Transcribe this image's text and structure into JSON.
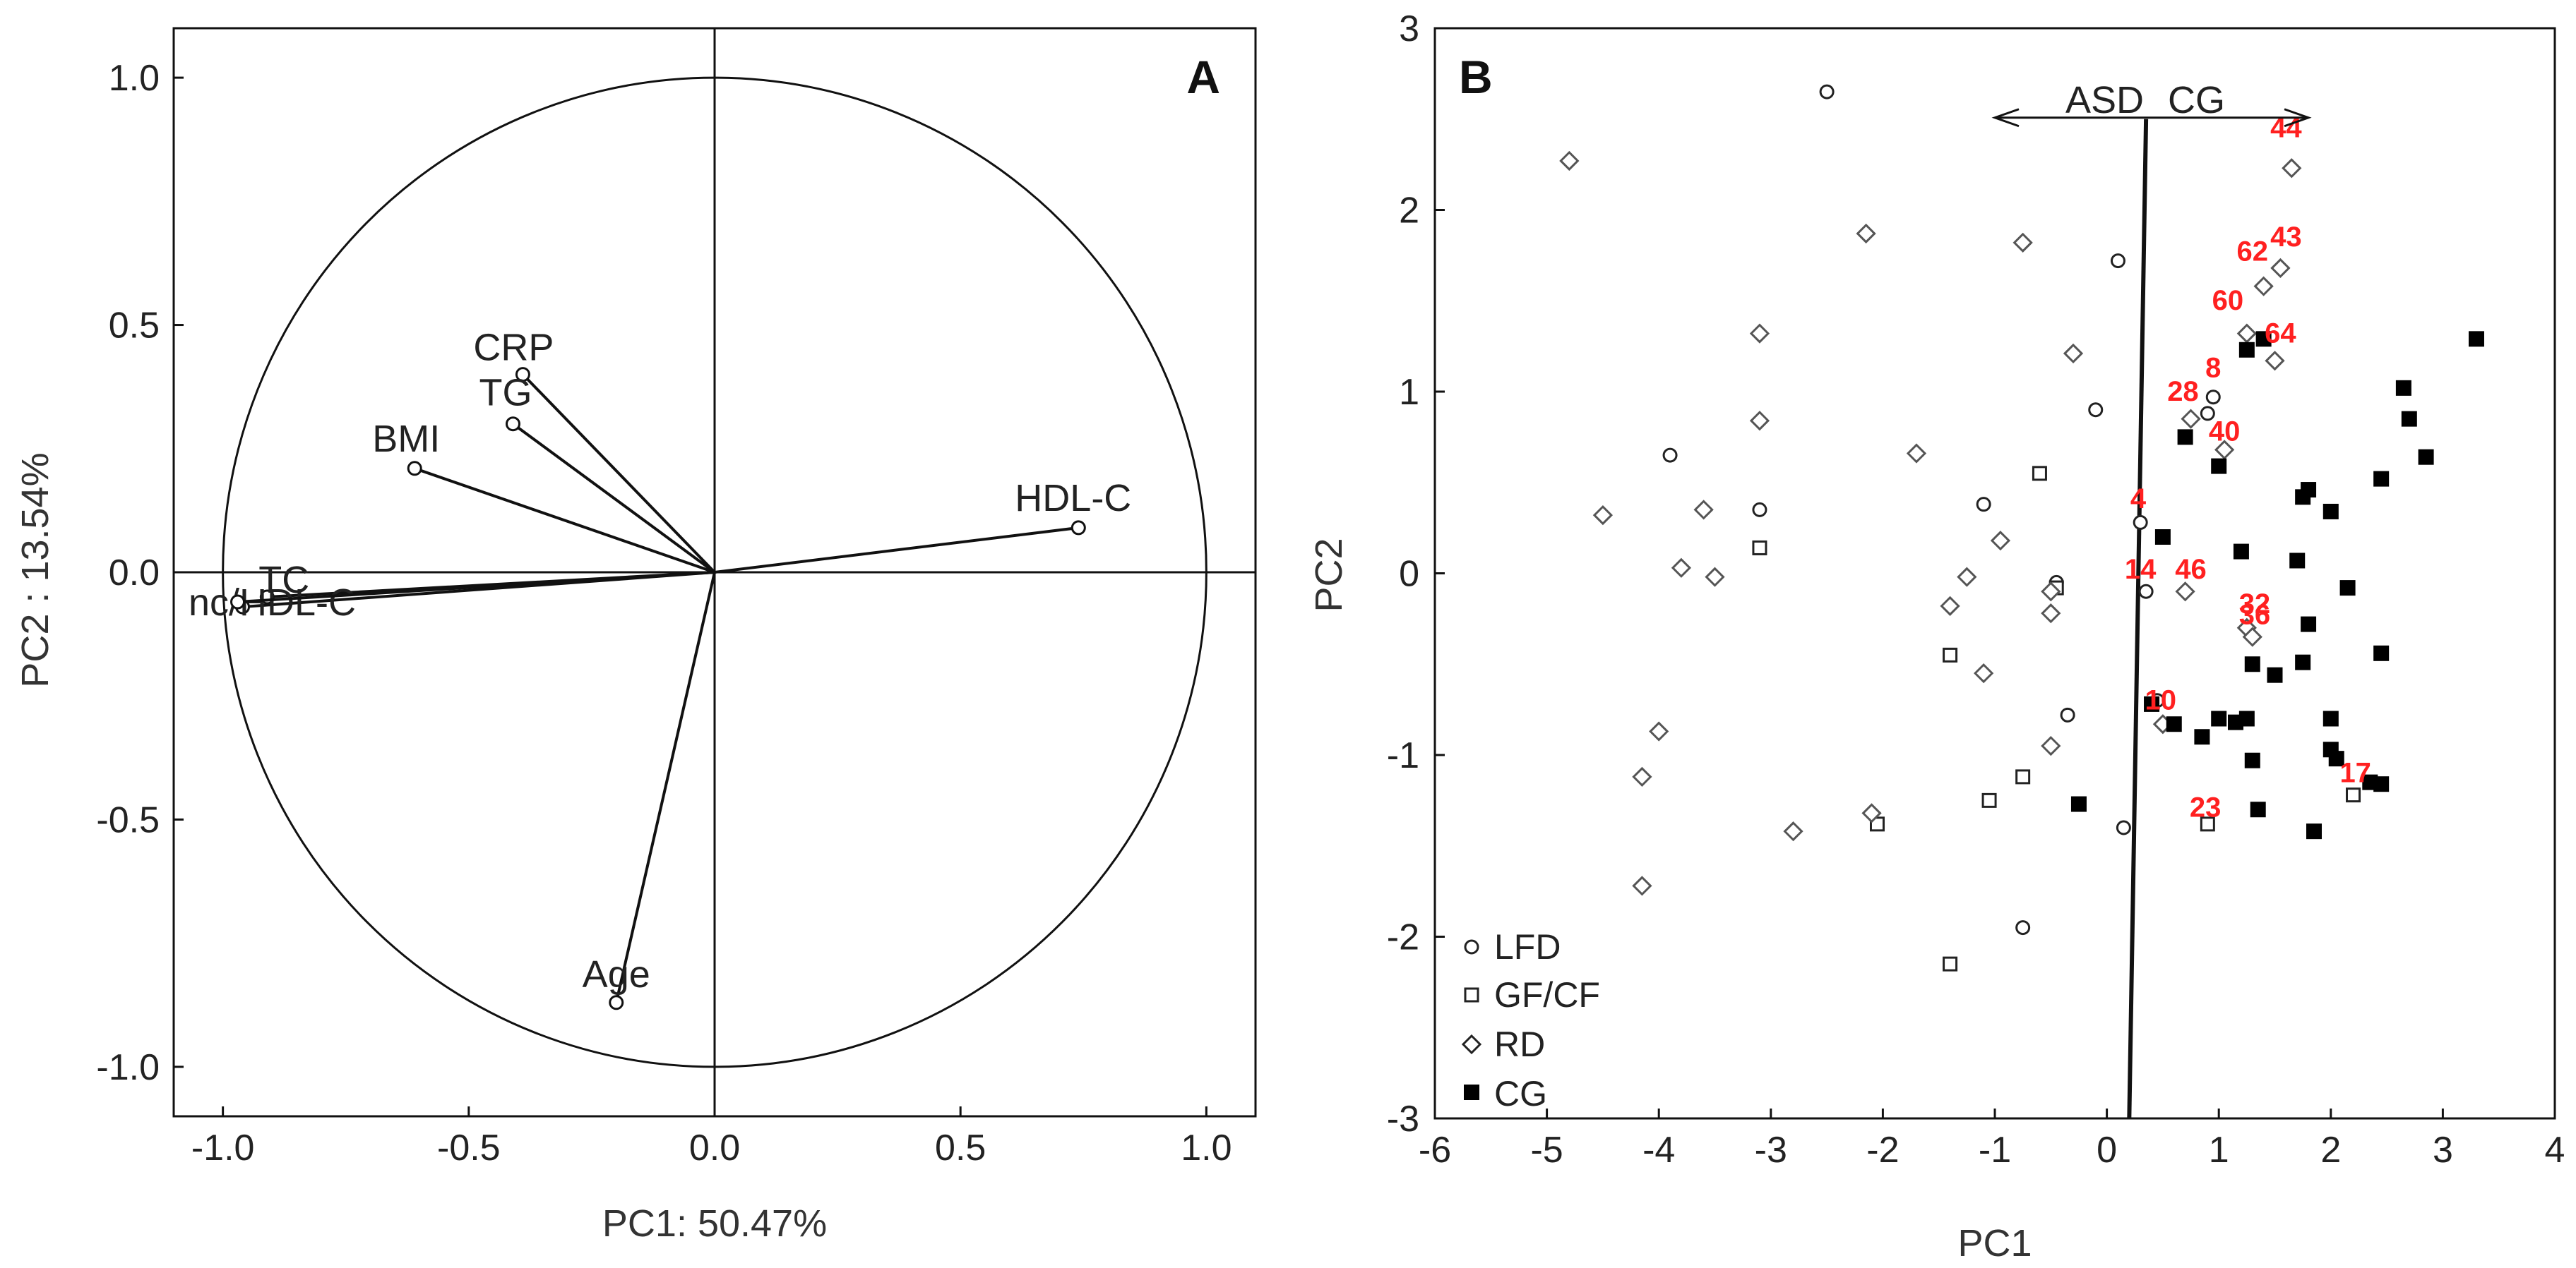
{
  "chart_data": [
    {
      "type": "scatter",
      "panel": "A",
      "xlabel": "PC1: 50.47%",
      "ylabel": "PC2 : 13.54%",
      "xlim": [
        -1.1,
        1.1
      ],
      "ylim": [
        -1.1,
        1.1
      ],
      "x_ticks": [
        "-1.0",
        "-0.5",
        "0.0",
        "0.5",
        "1.0"
      ],
      "y_ticks": [
        "1.0",
        "0.5",
        "0.0",
        "-0.5",
        "-1.0"
      ],
      "unit_circle": true,
      "vectors": [
        {
          "label": "CRP",
          "x": -0.39,
          "y": 0.4
        },
        {
          "label": "TG",
          "x": -0.41,
          "y": 0.3
        },
        {
          "label": "BMI",
          "x": -0.61,
          "y": 0.21
        },
        {
          "label": "HDL-C",
          "x": 0.74,
          "y": 0.09
        },
        {
          "label": "Age",
          "x": -0.2,
          "y": -0.87
        },
        {
          "label": "TC",
          "x": -0.91,
          "y": -0.05
        },
        {
          "label": "nc/HDL-C",
          "x": -0.96,
          "y": -0.07
        },
        {
          "label": "",
          "x": -0.97,
          "y": -0.06
        }
      ]
    },
    {
      "type": "scatter",
      "panel": "B",
      "xlabel": "PC1",
      "ylabel": "PC2",
      "xlim": [
        -6,
        4
      ],
      "ylim": [
        -3,
        3
      ],
      "x_ticks": [
        "-6",
        "-5",
        "-4",
        "-3",
        "-2",
        "-1",
        "0",
        "1",
        "2",
        "3",
        "4"
      ],
      "y_ticks": [
        "3",
        "2",
        "1",
        "0",
        "-1",
        "-2",
        "-3"
      ],
      "grid": false,
      "legend": "bottom-left",
      "separator_line": [
        [
          0.35,
          2.5
        ],
        [
          0.2,
          -3.0
        ]
      ],
      "arrow_annotation": {
        "left": "ASD",
        "right": "CG",
        "y": 2.5,
        "x_from": -1.0,
        "x_to": 1.8,
        "x_split": 0.35
      },
      "series": [
        {
          "name": "LFD",
          "marker": "open-circle",
          "points": [
            [
              -2.5,
              2.65
            ],
            [
              0.1,
              1.72
            ],
            [
              -3.9,
              0.65
            ],
            [
              -0.1,
              0.9
            ],
            [
              -1.1,
              0.38
            ],
            [
              -3.1,
              0.35
            ],
            [
              0.95,
              0.97
            ],
            [
              0.9,
              0.88
            ],
            [
              -0.45,
              -0.05
            ],
            [
              0.3,
              0.28
            ],
            [
              0.35,
              -0.1
            ],
            [
              0.45,
              -0.7
            ],
            [
              -0.35,
              -0.78
            ],
            [
              0.15,
              -1.4
            ],
            [
              -0.75,
              -1.95
            ]
          ]
        },
        {
          "name": "GF/CF",
          "marker": "open-square",
          "points": [
            [
              -0.6,
              0.55
            ],
            [
              -3.1,
              0.14
            ],
            [
              -0.45,
              -0.08
            ],
            [
              -1.4,
              -0.45
            ],
            [
              -1.05,
              -1.25
            ],
            [
              -0.75,
              -1.12
            ],
            [
              -2.05,
              -1.38
            ],
            [
              0.9,
              -1.38
            ],
            [
              2.2,
              -1.22
            ],
            [
              -1.4,
              -2.15
            ]
          ]
        },
        {
          "name": "RD",
          "marker": "open-diamond",
          "points": [
            [
              -4.8,
              2.27
            ],
            [
              -2.15,
              1.87
            ],
            [
              -0.75,
              1.82
            ],
            [
              1.65,
              2.23
            ],
            [
              1.55,
              1.68
            ],
            [
              1.4,
              1.58
            ],
            [
              1.25,
              1.32
            ],
            [
              1.5,
              1.17
            ],
            [
              -3.1,
              1.32
            ],
            [
              -0.3,
              1.21
            ],
            [
              0.75,
              0.85
            ],
            [
              1.05,
              0.68
            ],
            [
              -3.1,
              0.84
            ],
            [
              -1.7,
              0.66
            ],
            [
              -4.5,
              0.32
            ],
            [
              -3.6,
              0.35
            ],
            [
              -3.8,
              0.03
            ],
            [
              -3.5,
              -0.02
            ],
            [
              -0.95,
              0.18
            ],
            [
              -1.25,
              -0.02
            ],
            [
              -0.5,
              -0.1
            ],
            [
              -0.5,
              -0.22
            ],
            [
              -1.4,
              -0.18
            ],
            [
              -1.1,
              -0.55
            ],
            [
              0.7,
              -0.1
            ],
            [
              1.25,
              -0.3
            ],
            [
              1.3,
              -0.35
            ],
            [
              -4.0,
              -0.87
            ],
            [
              -0.5,
              -0.95
            ],
            [
              0.5,
              -0.83
            ],
            [
              -4.15,
              -1.12
            ],
            [
              -2.1,
              -1.32
            ],
            [
              -2.8,
              -1.42
            ],
            [
              -4.15,
              -1.72
            ]
          ]
        },
        {
          "name": "CG",
          "marker": "filled-square",
          "points": [
            [
              3.3,
              1.29
            ],
            [
              1.4,
              1.29
            ],
            [
              1.25,
              1.23
            ],
            [
              2.65,
              1.02
            ],
            [
              2.7,
              0.85
            ],
            [
              0.7,
              0.75
            ],
            [
              1.0,
              0.59
            ],
            [
              2.85,
              0.64
            ],
            [
              2.45,
              0.52
            ],
            [
              1.8,
              0.46
            ],
            [
              1.75,
              0.42
            ],
            [
              2.0,
              0.34
            ],
            [
              0.5,
              0.2
            ],
            [
              1.2,
              0.12
            ],
            [
              1.7,
              0.07
            ],
            [
              2.15,
              -0.08
            ],
            [
              1.8,
              -0.28
            ],
            [
              1.3,
              -0.5
            ],
            [
              1.5,
              -0.56
            ],
            [
              1.75,
              -0.49
            ],
            [
              2.45,
              -0.44
            ],
            [
              0.4,
              -0.72
            ],
            [
              1.0,
              -0.8
            ],
            [
              1.15,
              -0.82
            ],
            [
              1.25,
              -0.8
            ],
            [
              0.6,
              -0.83
            ],
            [
              0.85,
              -0.9
            ],
            [
              2.0,
              -0.8
            ],
            [
              2.0,
              -0.97
            ],
            [
              2.05,
              -1.02
            ],
            [
              1.3,
              -1.03
            ],
            [
              2.35,
              -1.15
            ],
            [
              2.45,
              -1.16
            ],
            [
              -0.25,
              -1.27
            ],
            [
              1.35,
              -1.3
            ],
            [
              1.85,
              -1.42
            ]
          ]
        }
      ],
      "point_labels": [
        {
          "text": "44",
          "x": 1.6,
          "y": 2.4
        },
        {
          "text": "43",
          "x": 1.6,
          "y": 1.8
        },
        {
          "text": "62",
          "x": 1.3,
          "y": 1.72
        },
        {
          "text": "60",
          "x": 1.08,
          "y": 1.45
        },
        {
          "text": "64",
          "x": 1.55,
          "y": 1.27
        },
        {
          "text": "8",
          "x": 0.95,
          "y": 1.08
        },
        {
          "text": "28",
          "x": 0.68,
          "y": 0.95
        },
        {
          "text": "40",
          "x": 1.05,
          "y": 0.73
        },
        {
          "text": "4",
          "x": 0.28,
          "y": 0.36
        },
        {
          "text": "14",
          "x": 0.3,
          "y": -0.03
        },
        {
          "text": "46",
          "x": 0.75,
          "y": -0.03
        },
        {
          "text": "32",
          "x": 1.32,
          "y": -0.22
        },
        {
          "text": "36",
          "x": 1.32,
          "y": -0.28
        },
        {
          "text": "10",
          "x": 0.48,
          "y": -0.75
        },
        {
          "text": "17",
          "x": 2.22,
          "y": -1.15
        },
        {
          "text": "23",
          "x": 0.88,
          "y": -1.34
        }
      ]
    }
  ],
  "panel_a": {
    "letter": "A"
  },
  "panel_b": {
    "letter": "B"
  },
  "colors": {
    "point_label": "#ff2020",
    "axis": "#111111"
  }
}
